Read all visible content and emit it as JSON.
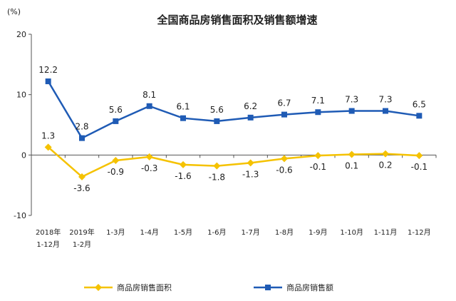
{
  "chart_data": {
    "type": "line",
    "title": "全国商品房销售面积及销售额增速",
    "unit_label": "(%)",
    "ylim": [
      -10,
      20
    ],
    "yticks": [
      "20",
      "10",
      "0",
      "-10"
    ],
    "grid": false,
    "legend_position": "bottom",
    "categories": [
      [
        "2018年",
        "1-12月"
      ],
      [
        "2019年",
        "1-2月"
      ],
      [
        "1-3月"
      ],
      [
        "1-4月"
      ],
      [
        "1-5月"
      ],
      [
        "1-6月"
      ],
      [
        "1-7月"
      ],
      [
        "1-8月"
      ],
      [
        "1-9月"
      ],
      [
        "1-10月"
      ],
      [
        "1-11月"
      ],
      [
        "1-12月"
      ]
    ],
    "series": [
      {
        "name": "商品房销售面积",
        "color": "#F5C200",
        "marker": "diamond",
        "values": [
          1.3,
          -3.6,
          -0.9,
          -0.3,
          -1.6,
          -1.8,
          -1.3,
          -0.6,
          -0.1,
          0.1,
          0.2,
          -0.1
        ],
        "labels": [
          "1.3",
          "-3.6",
          "-0.9",
          "-0.3",
          "-1.6",
          "-1.8",
          "-1.3",
          "-0.6",
          "-0.1",
          "0.1",
          "0.2",
          "-0.1"
        ]
      },
      {
        "name": "商品房销售额",
        "color": "#1F5BB5",
        "marker": "square",
        "values": [
          12.2,
          2.8,
          5.6,
          8.1,
          6.1,
          5.6,
          6.2,
          6.7,
          7.1,
          7.3,
          7.3,
          6.5
        ],
        "labels": [
          "12.2",
          "2.8",
          "5.6",
          "8.1",
          "6.1",
          "5.6",
          "6.2",
          "6.7",
          "7.1",
          "7.3",
          "7.3",
          "6.5"
        ]
      }
    ]
  }
}
